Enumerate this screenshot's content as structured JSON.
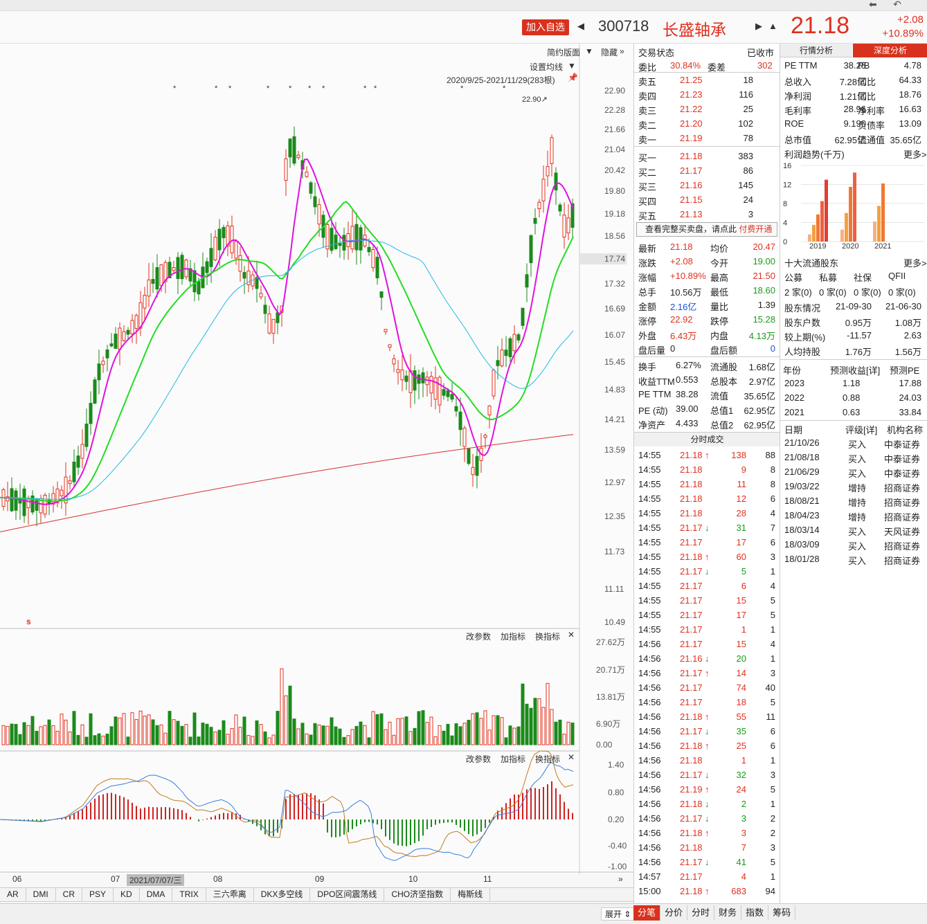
{
  "header": {
    "add_fav": "加入自选",
    "code": "300718",
    "name": "长盛轴承",
    "price": "21.18",
    "change": "+2.08",
    "change_pct": "+10.89%"
  },
  "chart": {
    "ctrl_simple": "简约版面",
    "ctrl_hide": "隐藏",
    "ctrl_ma": "设置均线",
    "range": "2020/9/25-2021/11/29(283根)",
    "high_label": "22.90↗",
    "price_ticks": [
      "22.90",
      "22.28",
      "21.66",
      "21.04",
      "20.42",
      "19.80",
      "19.18",
      "18.56",
      "17.74",
      "17.32",
      "16.69",
      "16.07",
      "15.45",
      "14.83",
      "14.21",
      "13.59",
      "12.97",
      "12.35",
      "11.73",
      "11.11",
      "10.49"
    ],
    "vol_ticks": [
      "27.62万",
      "20.71万",
      "13.81万",
      "6.90万",
      "0.00"
    ],
    "macd_ticks": [
      "1.40",
      "0.80",
      "0.20",
      "-0.40",
      "-1.00"
    ],
    "sub_ctrl": [
      "改参数",
      "加指标",
      "换指标"
    ],
    "months": [
      "06",
      "07",
      "08",
      "09",
      "10",
      "11"
    ],
    "cursor_date": "2021/07/07/三",
    "s_mark": "s"
  },
  "chart_data": {
    "type": "candlestick",
    "title": "",
    "price_range": [
      10.49,
      22.9
    ],
    "current": 17.74,
    "high": 22.9,
    "series": [
      {
        "name": "MA5",
        "color": "#e010e0"
      },
      {
        "name": "MA10",
        "color": "#22dd22"
      },
      {
        "name": "MA20",
        "color": "#22b7e6"
      },
      {
        "name": "MA60",
        "color": "#d83030"
      }
    ]
  },
  "ind_tabs": [
    "AR",
    "DMI",
    "CR",
    "PSY",
    "KD",
    "DMA",
    "TRIX",
    "三六乖离",
    "DKX多空线",
    "DPO区间震荡线",
    "CHO济坚指数",
    "梅斯线"
  ],
  "status": {
    "label": "交易状态",
    "value": "已收市",
    "weibi_label": "委比",
    "weibi": "30.84%",
    "weicha_label": "委差",
    "weicha": "302"
  },
  "asks": [
    {
      "l": "卖五",
      "p": "21.25",
      "v": "18"
    },
    {
      "l": "卖四",
      "p": "21.23",
      "v": "116"
    },
    {
      "l": "卖三",
      "p": "21.22",
      "v": "25"
    },
    {
      "l": "卖二",
      "p": "21.20",
      "v": "102"
    },
    {
      "l": "卖一",
      "p": "21.19",
      "v": "78"
    }
  ],
  "bids": [
    {
      "l": "买一",
      "p": "21.18",
      "v": "383"
    },
    {
      "l": "买二",
      "p": "21.17",
      "v": "86"
    },
    {
      "l": "买三",
      "p": "21.16",
      "v": "145"
    },
    {
      "l": "买四",
      "p": "21.15",
      "v": "24"
    },
    {
      "l": "买五",
      "p": "21.13",
      "v": "3"
    }
  ],
  "fullbook": {
    "text": "查看完整买卖盘，请点此 ",
    "link": "付费开通"
  },
  "quote": [
    [
      "最新",
      "21.18",
      "red",
      "均价",
      "20.47",
      "red"
    ],
    [
      "涨跌",
      "+2.08",
      "red",
      "今开",
      "19.00",
      "grn"
    ],
    [
      "涨幅",
      "+10.89%",
      "red",
      "最高",
      "21.50",
      "red"
    ],
    [
      "总手",
      "10.56万",
      "",
      "最低",
      "18.60",
      "grn"
    ],
    [
      "金额",
      "2.16亿",
      "blu",
      "量比",
      "1.39",
      ""
    ],
    [
      "涨停",
      "22.92",
      "red",
      "跌停",
      "15.28",
      "grn"
    ],
    [
      "外盘",
      "6.43万",
      "red",
      "内盘",
      "4.13万",
      "grn"
    ],
    [
      "盘后量",
      "0",
      "",
      "盘后额",
      "0",
      "blu"
    ]
  ],
  "quote2": [
    [
      "换手",
      "6.27%",
      "流通股",
      "1.68亿"
    ],
    [
      "收益TTM",
      "0.553",
      "总股本",
      "2.97亿"
    ],
    [
      "PE TTM",
      "38.28",
      "流值",
      "35.65亿"
    ],
    [
      "PE (动)",
      "39.00",
      "总值1",
      "62.95亿"
    ],
    [
      "净资产",
      "4.433",
      "总值2",
      "62.95亿"
    ]
  ],
  "ticks_title": "分时成交",
  "ticks": [
    [
      "14:55",
      "21.18",
      "↑",
      "138",
      "88"
    ],
    [
      "14:55",
      "21.18",
      "",
      "9",
      "8"
    ],
    [
      "14:55",
      "21.18",
      "",
      "11",
      "8"
    ],
    [
      "14:55",
      "21.18",
      "",
      "12",
      "6"
    ],
    [
      "14:55",
      "21.18",
      "",
      "28",
      "4"
    ],
    [
      "14:55",
      "21.17",
      "↓",
      "31",
      "7"
    ],
    [
      "14:55",
      "21.17",
      "",
      "17",
      "6"
    ],
    [
      "14:55",
      "21.18",
      "↑",
      "60",
      "3"
    ],
    [
      "14:55",
      "21.17",
      "↓",
      "5",
      "1"
    ],
    [
      "14:55",
      "21.17",
      "",
      "6",
      "4"
    ],
    [
      "14:55",
      "21.17",
      "",
      "15",
      "5"
    ],
    [
      "14:55",
      "21.17",
      "",
      "17",
      "5"
    ],
    [
      "14:55",
      "21.17",
      "",
      "1",
      "1"
    ],
    [
      "14:56",
      "21.17",
      "",
      "15",
      "4"
    ],
    [
      "14:56",
      "21.16",
      "↓",
      "20",
      "1"
    ],
    [
      "14:56",
      "21.17",
      "↑",
      "14",
      "3"
    ],
    [
      "14:56",
      "21.17",
      "",
      "74",
      "40"
    ],
    [
      "14:56",
      "21.17",
      "",
      "18",
      "5"
    ],
    [
      "14:56",
      "21.18",
      "↑",
      "55",
      "11"
    ],
    [
      "14:56",
      "21.17",
      "↓",
      "35",
      "6"
    ],
    [
      "14:56",
      "21.18",
      "↑",
      "25",
      "6"
    ],
    [
      "14:56",
      "21.18",
      "",
      "1",
      "1"
    ],
    [
      "14:56",
      "21.17",
      "↓",
      "32",
      "3"
    ],
    [
      "14:56",
      "21.19",
      "↑",
      "24",
      "5"
    ],
    [
      "14:56",
      "21.18",
      "↓",
      "2",
      "1"
    ],
    [
      "14:56",
      "21.17",
      "↓",
      "3",
      "2"
    ],
    [
      "14:56",
      "21.18",
      "↑",
      "3",
      "2"
    ],
    [
      "14:56",
      "21.18",
      "",
      "7",
      "3"
    ],
    [
      "14:56",
      "21.17",
      "↓",
      "41",
      "5"
    ],
    [
      "14:57",
      "21.17",
      "",
      "4",
      "1"
    ],
    [
      "15:00",
      "21.18",
      "↑",
      "683",
      "94"
    ]
  ],
  "fin_tabs": [
    "行情分析",
    "深度分析"
  ],
  "fin": [
    [
      "PE TTM",
      "38.28",
      "PB",
      "4.78"
    ],
    [
      "总收入",
      "7.28亿",
      "同比",
      "64.33"
    ],
    [
      "净利润",
      "1.21亿",
      "同比",
      "18.76"
    ],
    [
      "毛利率",
      "28.96",
      "净利率",
      "16.63"
    ],
    [
      "ROE",
      "9.190",
      "负债率",
      "13.09"
    ],
    [
      "总市值",
      "62.95亿",
      "流通值",
      "35.65亿"
    ]
  ],
  "profit": {
    "title": "利润趋势(千万)",
    "more": "更多>>",
    "yticks": [
      "16",
      "12",
      "8",
      "4",
      "0"
    ],
    "years": [
      "2019",
      "2020",
      "2021"
    ],
    "bars": [
      [
        1.5,
        3.5,
        5.7,
        8.5,
        13
      ],
      [
        2.5,
        6,
        11.5,
        14.5
      ],
      [
        4.2,
        7.5,
        12.2
      ]
    ]
  },
  "holders": {
    "title": "十大流通股东",
    "more": "更多>>",
    "cats": [
      "公募",
      "私募",
      "社保",
      "QFII"
    ],
    "counts": [
      "2 家(0)",
      "0 家(0)",
      "0 家(0)",
      "0 家(0)"
    ],
    "rows": [
      [
        "股东情况",
        "21-09-30",
        "21-06-30"
      ],
      [
        "股东户数",
        "0.95万",
        "1.08万"
      ],
      [
        "较上期(%)",
        "-11.57",
        "2.63"
      ],
      [
        "人均持股",
        "1.76万",
        "1.56万"
      ]
    ]
  },
  "forecast": {
    "head": [
      "年份",
      "预测收益[详]",
      "预测PE"
    ],
    "rows": [
      [
        "2023",
        "1.18",
        "17.88"
      ],
      [
        "2022",
        "0.88",
        "24.03"
      ],
      [
        "2021",
        "0.63",
        "33.84"
      ]
    ]
  },
  "ratings": {
    "head": [
      "日期",
      "评级[详]",
      "机构名称"
    ],
    "rows": [
      [
        "21/10/26",
        "买入",
        "中泰证券"
      ],
      [
        "21/08/18",
        "买入",
        "中泰证券"
      ],
      [
        "21/06/29",
        "买入",
        "中泰证券"
      ],
      [
        "19/03/22",
        "增持",
        "招商证券"
      ],
      [
        "18/08/21",
        "增持",
        "招商证券"
      ],
      [
        "18/04/23",
        "增持",
        "招商证券"
      ],
      [
        "18/03/14",
        "买入",
        "天风证券"
      ],
      [
        "18/03/09",
        "买入",
        "招商证券"
      ],
      [
        "18/01/28",
        "买入",
        "招商证券"
      ]
    ]
  },
  "bottom_tabs": [
    "分笔",
    "分价",
    "分时",
    "财务",
    "指数",
    "筹码"
  ],
  "expand": "展开"
}
